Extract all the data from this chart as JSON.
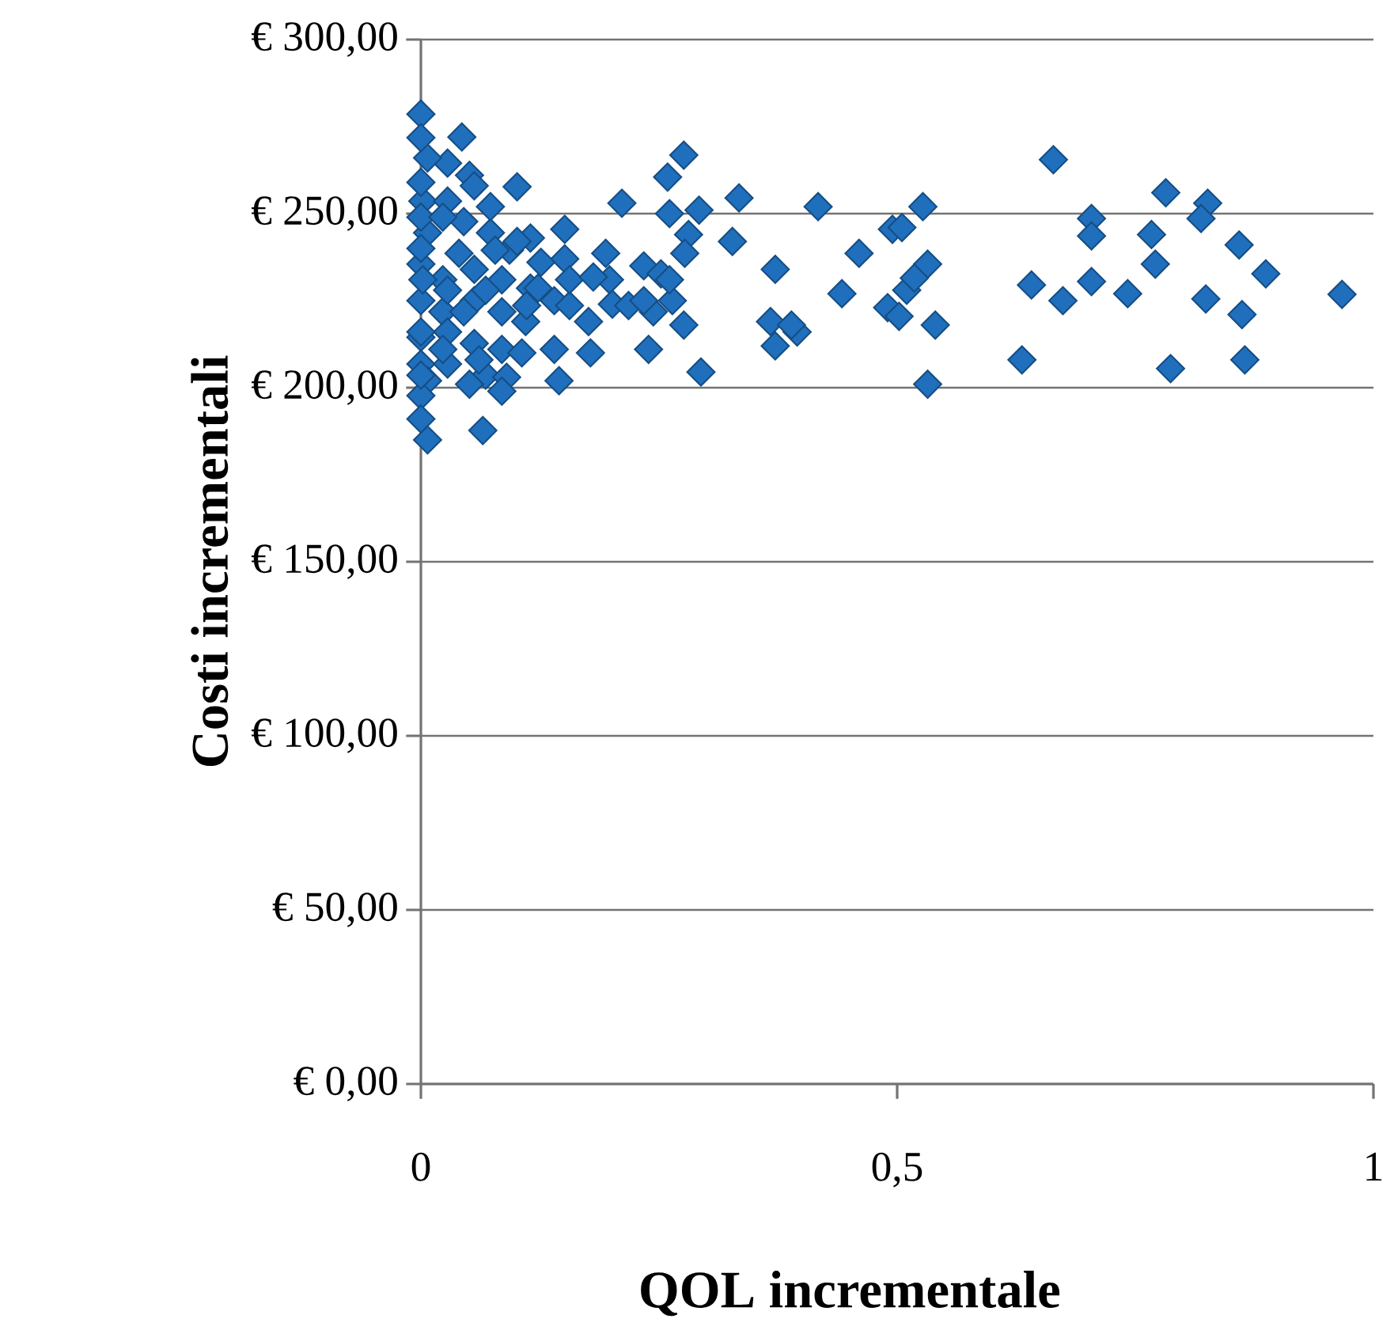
{
  "chart_data": {
    "type": "scatter",
    "xlabel": "QOL incrementale",
    "ylabel": "Costi incrementali",
    "xlim": [
      0,
      1
    ],
    "xticks": [
      0,
      {
        "value": 0.5,
        "label": "0,5"
      },
      1
    ],
    "ylim": [
      0,
      300
    ],
    "yticks": [
      {
        "value": 0,
        "label": "€ 0,00"
      },
      {
        "value": 50,
        "label": "€ 50,00"
      },
      {
        "value": 100,
        "label": "€ 100,00"
      },
      {
        "value": 150,
        "label": "€ 150,00"
      },
      {
        "value": 200,
        "label": "€ 200,00"
      },
      {
        "value": 250,
        "label": "€ 250,00"
      },
      {
        "value": 300,
        "label": "€ 300,00"
      }
    ],
    "grid": "y",
    "marker": "diamond",
    "series": [
      {
        "color": "#1f6fbd",
        "x": [
          0.664,
          0.631,
          0.641,
          0.674,
          0.704,
          0.704,
          0.704,
          0.742,
          0.767,
          0.771,
          0.782,
          0.787,
          0.826,
          0.819,
          0.824,
          0.859,
          0.862,
          0.865,
          0.887,
          0.967,
          0.334,
          0.327,
          0.372,
          0.372,
          0.367,
          0.395,
          0.389,
          0.417,
          0.442,
          0.46,
          0.49,
          0.495,
          0.505,
          0.527,
          0.51,
          0.502,
          0.532,
          0.54,
          0.532,
          0.518,
          0,
          0.043,
          0.276,
          0.259,
          0.211,
          0.261,
          0.292,
          0.281,
          0.151,
          0.101,
          0.051,
          0.028,
          0.194,
          0.234,
          0.252,
          0.277,
          0.198,
          0.151,
          0.115,
          0.073,
          0.04,
          0.007,
          0.002,
          0.007,
          0,
          0.093,
          0.115,
          0.085,
          0.056,
          0.023,
          0,
          0,
          0.023,
          0.056,
          0.085,
          0.11,
          0.14,
          0.156,
          0.176,
          0.201,
          0.218,
          0.244,
          0.264,
          0.276,
          0.239,
          0.178,
          0.14,
          0.145,
          0.294,
          0.085,
          0.056,
          0.028,
          0,
          0,
          0.028,
          0.068,
          0.09,
          0.085,
          0.051,
          0.007,
          0,
          0,
          0.007,
          0.065,
          0.002,
          0,
          0.028,
          0.068,
          0.045,
          0.073,
          0.101,
          0.028,
          0,
          0.056,
          0.078,
          0.126,
          0.111,
          0.045,
          0.106,
          0.123,
          0,
          0.023,
          0,
          0,
          0.023,
          0.061,
          0.156,
          0.181,
          0.261,
          0.234
        ],
        "values": [
          265.5,
          208,
          229.5,
          225,
          248.6,
          243.6,
          230.5,
          227,
          244,
          235.5,
          256,
          205.5,
          253,
          248.6,
          225.5,
          241,
          221,
          208,
          232.7,
          226.8,
          254.5,
          242,
          234,
          212,
          219,
          216,
          218,
          252,
          227,
          238.6,
          223,
          245.5,
          246,
          252,
          228,
          220.5,
          235.5,
          218,
          201,
          231.5,
          278.6,
          272,
          266.8,
          260.5,
          253,
          250,
          251,
          244,
          245.5,
          257.7,
          261,
          264.5,
          238.6,
          235,
          232.7,
          238.6,
          231,
          237,
          243,
          244.5,
          238.6,
          244.5,
          253.6,
          266,
          271.8,
          239.5,
          228.6,
          231,
          234,
          231,
          235.5,
          225,
          221.8,
          225,
          221.8,
          219,
          225,
          223.6,
          219,
          224,
          223.6,
          221.8,
          225,
          218,
          211,
          210,
          211,
          202,
          204.5,
          211,
          212.7,
          216,
          214.5,
          206.8,
          206.8,
          203.6,
          203,
          199,
          201,
          202,
          197.7,
          191,
          185,
          187.7,
          231,
          216,
          228,
          228,
          247.7,
          252,
          242,
          253.6,
          259,
          258,
          239.5,
          236,
          223.6,
          221.8,
          210,
          228.6,
          249,
          249,
          240,
          203.6,
          211,
          208,
          231,
          231.8,
          231,
          225
        ]
      }
    ]
  }
}
